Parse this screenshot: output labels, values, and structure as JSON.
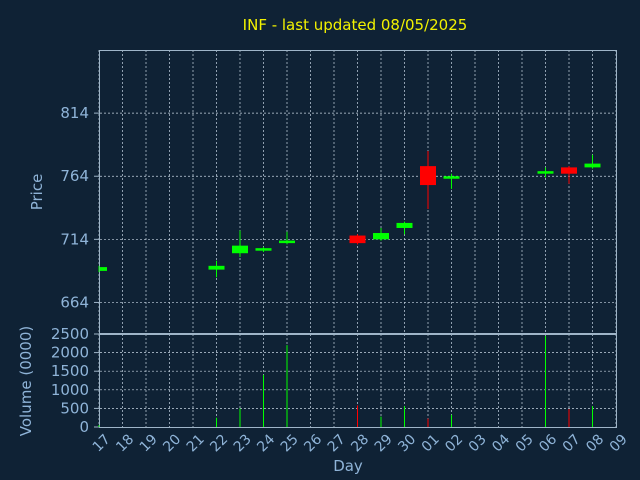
{
  "chart_data": [
    {
      "type": "candlestick",
      "title": "INF - last updated 08/05/2025",
      "ylabel": "Price",
      "yticks": [
        664,
        714,
        764,
        814
      ],
      "ylim": [
        639,
        864
      ],
      "grid": true,
      "colors": {
        "up": "#00ff00",
        "down": "#ff0000"
      },
      "candles": [
        {
          "x": "17",
          "open": 689,
          "close": 692,
          "high": 693,
          "low": 688
        },
        {
          "x": "22",
          "open": 690,
          "close": 693,
          "high": 697,
          "low": 684
        },
        {
          "x": "23",
          "open": 703,
          "close": 709,
          "high": 721,
          "low": 700
        },
        {
          "x": "24",
          "open": 705,
          "close": 707,
          "high": 708,
          "low": 704
        },
        {
          "x": "25",
          "open": 711,
          "close": 713,
          "high": 720,
          "low": 710
        },
        {
          "x": "28",
          "open": 717,
          "close": 711,
          "high": 718,
          "low": 710
        },
        {
          "x": "29",
          "open": 714,
          "close": 719,
          "high": 723,
          "low": 713
        },
        {
          "x": "30",
          "open": 723,
          "close": 727,
          "high": 728,
          "low": 718
        },
        {
          "x": "01",
          "open": 772,
          "close": 757,
          "high": 784,
          "low": 738
        },
        {
          "x": "02",
          "open": 762,
          "close": 764,
          "high": 766,
          "low": 754
        },
        {
          "x": "06",
          "open": 766,
          "close": 768,
          "high": 771,
          "low": 763
        },
        {
          "x": "07",
          "open": 771,
          "close": 766,
          "high": 772,
          "low": 758
        },
        {
          "x": "08",
          "open": 771,
          "close": 774,
          "high": 781,
          "low": 770
        }
      ]
    },
    {
      "type": "bar",
      "ylabel": "Volume (0000)",
      "xlabel": "Day",
      "categories": [
        "17",
        "18",
        "19",
        "20",
        "21",
        "22",
        "23",
        "24",
        "25",
        "26",
        "27",
        "28",
        "29",
        "30",
        "01",
        "02",
        "03",
        "04",
        "05",
        "06",
        "07",
        "08",
        "09"
      ],
      "yticks": [
        0,
        500,
        1000,
        1500,
        2000,
        2500
      ],
      "ylim": [
        0,
        2500
      ],
      "volumes": [
        {
          "x": "17",
          "value": 50,
          "dir": "up"
        },
        {
          "x": "22",
          "value": 250,
          "dir": "up"
        },
        {
          "x": "23",
          "value": 500,
          "dir": "up"
        },
        {
          "x": "24",
          "value": 1400,
          "dir": "up"
        },
        {
          "x": "25",
          "value": 2200,
          "dir": "up"
        },
        {
          "x": "28",
          "value": 580,
          "dir": "down"
        },
        {
          "x": "29",
          "value": 280,
          "dir": "up"
        },
        {
          "x": "30",
          "value": 560,
          "dir": "up"
        },
        {
          "x": "01",
          "value": 230,
          "dir": "down"
        },
        {
          "x": "02",
          "value": 330,
          "dir": "up"
        },
        {
          "x": "06",
          "value": 2450,
          "dir": "up"
        },
        {
          "x": "07",
          "value": 480,
          "dir": "down"
        },
        {
          "x": "08",
          "value": 560,
          "dir": "up"
        }
      ]
    }
  ]
}
